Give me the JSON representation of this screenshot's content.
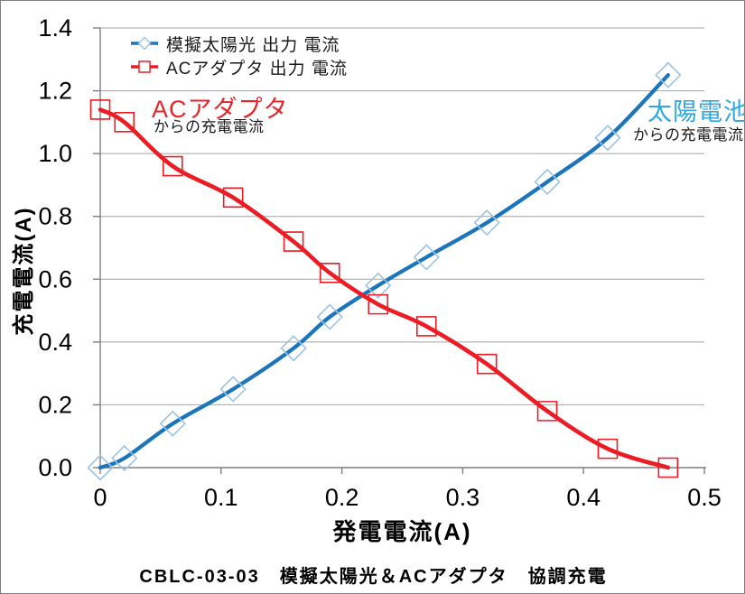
{
  "colors": {
    "solar_line": "#1B75BB",
    "solar_marker": "#9CC3E3",
    "ac_line": "#EC1C24",
    "ac_marker": "#EC1C24",
    "grid": "#A3A3A3",
    "axis": "#7F7F7F",
    "tick_label": "#000000",
    "annotation_ac": "#E8242B",
    "annotation_solar": "#2FA8E1"
  },
  "chart_data": {
    "type": "line",
    "title": "CBLC-03-03　模擬太陽光＆ACアダプタ　協調充電",
    "xlabel": "発電電流(A)",
    "ylabel": "充電電流(A)",
    "xlim": [
      0,
      0.5
    ],
    "ylim": [
      0,
      1.4
    ],
    "x_tick_values": [
      0,
      0.1,
      0.2,
      0.3,
      0.4,
      0.5
    ],
    "x_tick_labels": [
      "0",
      "0.1",
      "0.2",
      "0.3",
      "0.4",
      "0.5"
    ],
    "y_tick_values": [
      0,
      0.2,
      0.4,
      0.6,
      0.8,
      1.0,
      1.2,
      1.4
    ],
    "y_tick_labels": [
      "0.0",
      "0.2",
      "0.4",
      "0.6",
      "0.8",
      "1.0",
      "1.2",
      "1.4"
    ],
    "grid": "horizontal",
    "legend_position": "top-left-inside",
    "x": [
      0,
      0.02,
      0.06,
      0.11,
      0.16,
      0.19,
      0.23,
      0.27,
      0.32,
      0.37,
      0.42,
      0.47
    ],
    "series": [
      {
        "name": "模擬太陽光 出力 電流",
        "marker": "diamond",
        "color": "#1B75BB",
        "marker_color": "#9CC3E3",
        "values": [
          0.0,
          0.03,
          0.14,
          0.25,
          0.38,
          0.48,
          0.58,
          0.67,
          0.78,
          0.91,
          1.05,
          1.25
        ]
      },
      {
        "name": "ACアダプタ 出力 電流",
        "marker": "square",
        "color": "#EC1C24",
        "marker_color": "#EC1C24",
        "values": [
          1.14,
          1.1,
          0.96,
          0.86,
          0.72,
          0.62,
          0.52,
          0.45,
          0.33,
          0.18,
          0.06,
          0.0
        ]
      }
    ],
    "annotations": [
      {
        "text": "ACアダプタ",
        "sub": "からの充電電流",
        "color": "#E8242B"
      },
      {
        "text": "太陽電池",
        "sub": "からの充電電流",
        "color": "#2FA8E1"
      }
    ]
  }
}
